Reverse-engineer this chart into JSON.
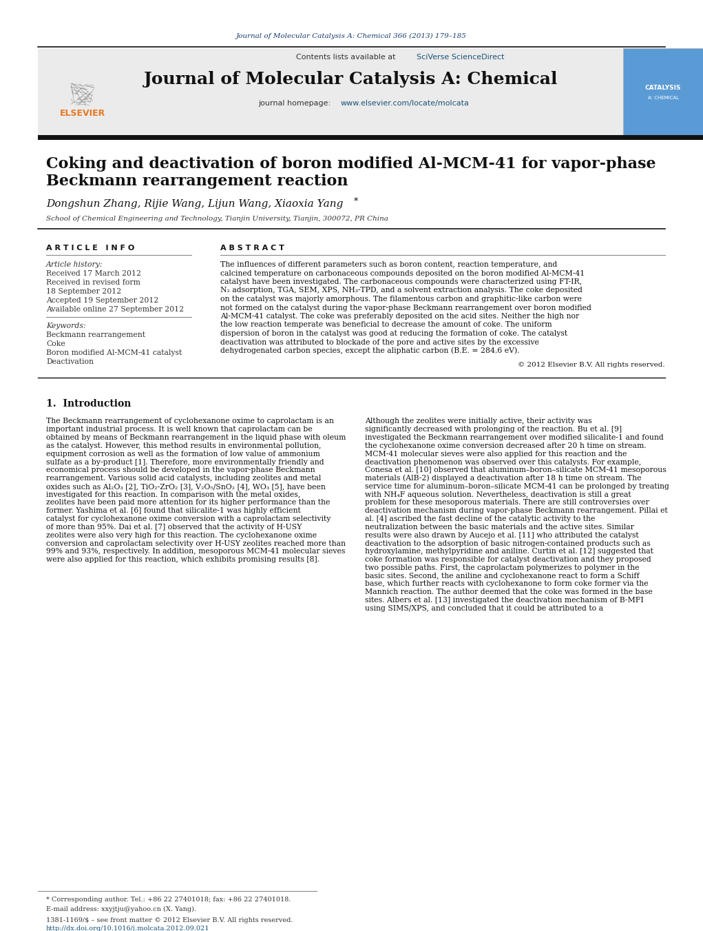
{
  "journal_ref": "Journal of Molecular Catalysis A: Chemical 366 (2013) 179–185",
  "journal_name": "Journal of Molecular Catalysis A: Chemical",
  "contents_line": "Contents lists available at SciVerse ScienceDirect",
  "homepage_line": "journal homepage: www.elsevier.com/locate/molcata",
  "title_line1": "Coking and deactivation of boron modified Al-MCM-41 for vapor-phase",
  "title_line2": "Beckmann rearrangement reaction",
  "authors": "Dongshun Zhang, Rijie Wang, Lijun Wang, Xiaoxia Yang",
  "affiliation": "School of Chemical Engineering and Technology, Tianjin University, Tianjin, 300072, PR China",
  "article_info_header": "A R T I C L E   I N F O",
  "abstract_header": "A B S T R A C T",
  "article_history_label": "Article history:",
  "received": "Received 17 March 2012",
  "received_revised1": "Received in revised form",
  "received_revised2": "18 September 2012",
  "accepted": "Accepted 19 September 2012",
  "available": "Available online 27 September 2012",
  "keywords_label": "Keywords:",
  "keywords": [
    "Beckmann rearrangement",
    "Coke",
    "Boron modified Al-MCM-41 catalyst",
    "Deactivation"
  ],
  "abstract_text": "The influences of different parameters such as boron content, reaction temperature, and calcined temperature on carbonaceous compounds deposited on the boron modified Al-MCM-41 catalyst have been investigated. The carbonaceous compounds were characterized using FT-IR, N₂ adsorption, TGA, SEM, XPS, NH₃-TPD, and a solvent extraction analysis. The coke deposited on the catalyst was majorly amorphous. The filamentous carbon and graphitic-like carbon were not formed on the catalyst during the vapor-phase Beckmann rearrangement over boron modified Al-MCM-41 catalyst. The coke was preferably deposited on the acid sites. Neither the high nor the low reaction temperate was beneficial to decrease the amount of coke. The uniform dispersion of boron in the catalyst was good at reducing the formation of coke. The catalyst deactivation was attributed to blockade of the pore and active sites by the excessive dehydrogenated carbon species, except the aliphatic carbon (B.E. = 284.6 eV).",
  "copyright": "© 2012 Elsevier B.V. All rights reserved.",
  "intro_header": "1.  Introduction",
  "intro_text_left": "    The Beckmann rearrangement of cyclohexanone oxime to caprolactam is an important industrial process. It is well known that caprolactam can be obtained by means of Beckmann rearrangement in the liquid phase with oleum as the catalyst. However, this method results in environmental pollution, equipment corrosion as well as the formation of low value of ammonium sulfate as a by-product [1]. Therefore, more environmentally friendly and economical process should be developed in the vapor-phase Beckmann rearrangement. Various solid acid catalysts, including zeolites and metal oxides such as Al₂O₃ [2], TiO₂-ZrO₂ [3], V₂O₅/SnO₂ [4], WO₃ [5], have been investigated for this reaction. In comparison with the metal oxides, zeolites have been paid more attention for its higher performance than the former. Yashima et al. [6] found that silicalite-1 was highly efficient catalyst for cyclohexanone oxime conversion with a caprolactam selectivity of more than 95%. Dai et al. [7] observed that the activity of H-USY zeolites were also very high for this reaction. The cyclohexanone oxime conversion and caprolactam selectivity over H-USY zeolites reached more than 99% and 93%, respectively. In addition, mesoporous MCM-41 molecular sieves were also applied for this reaction, which exhibits promising results [8].",
  "intro_text_right": "    Although the zeolites were initially active, their activity was significantly decreased with prolonging of the reaction. Bu et al. [9] investigated the Beckmann rearrangement over modified silicalite-1 and found the cyclohexanone oxime conversion decreased after 20 h time on stream. MCM-41 molecular sieves were also applied for this reaction and the deactivation phenomenon was observed over this catalysts. For example, Conesa et al. [10] observed that aluminum–boron–silicate MCM-41 mesoporous materials (AlB-2) displayed a deactivation after 18 h time on stream. The service time for aluminum–boron–silicate MCM-41 can be prolonged by treating with NH₄F aqueous solution. Nevertheless, deactivation is still a great problem for these mesoporous materials.     There are still controversies over deactivation mechanism during vapor-phase Beckmann rearrangement. Pillai et al. [4] ascribed the fast decline of the catalytic activity to the neutralization between the basic materials and the active sites. Similar results were also drawn by Aucejo et al. [11] who attributed the catalyst deactivation to the adsorption of basic nitrogen-contained products such as hydroxylamine, methylpyridine and aniline. Curtin et al. [12] suggested that coke formation was responsible for catalyst deactivation and they proposed two possible paths. First, the caprolactam polymerizes to polymer in the basic sites. Second, the aniline and cyclohexanone react to form a Schiff base, which further reacts with cyclohexanone to form coke former via the Mannich reaction. The author deemed that the coke was formed in the base sites. Albers et al. [13] investigated the deactivation mechanism of B-MFI using SIMS/XPS, and concluded that it could be attributed to a",
  "footnote_text": "* Corresponding author. Tel.: +86 22 27401018; fax: +86 22 27401018.",
  "footnote_email": "E-mail address: xxyjtju@yahoo.cn (X. Yang).",
  "issn_line": "1381-1169/$ – see front matter © 2012 Elsevier B.V. All rights reserved.",
  "doi_line": "http://dx.doi.org/10.1016/j.molcata.2012.09.021",
  "bg_color": "#ffffff",
  "header_bg": "#ebebeb",
  "dark_bar_color": "#111111",
  "elsevier_orange": "#e87722",
  "link_color": "#1a5276",
  "journal_ref_color": "#1a3a6b",
  "header_line_color": "#111111"
}
